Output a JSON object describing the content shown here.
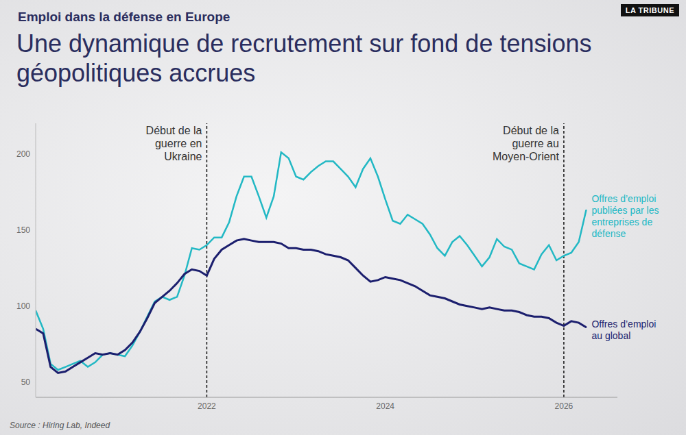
{
  "chart_data": {
    "type": "line",
    "subtitle": "Emploi dans la défense en Europe",
    "title": "Une dynamique de recrutement sur fond de tensions géopolitiques accrues",
    "source": "Source : Hiring Lab, Indeed",
    "brand": "LA TRIBUNE",
    "x": [
      2020.083,
      2020.167,
      2020.25,
      2020.333,
      2020.417,
      2020.5,
      2020.583,
      2020.667,
      2020.75,
      2020.833,
      2020.917,
      2021,
      2021.083,
      2021.167,
      2021.25,
      2021.333,
      2021.417,
      2021.5,
      2021.583,
      2021.667,
      2021.75,
      2021.833,
      2021.917,
      2022,
      2022.083,
      2022.167,
      2022.25,
      2022.333,
      2022.417,
      2022.5,
      2022.583,
      2022.667,
      2022.75,
      2022.833,
      2022.917,
      2023,
      2023.083,
      2023.167,
      2023.25,
      2023.333,
      2023.417,
      2023.5,
      2023.583,
      2023.667,
      2023.75,
      2023.833,
      2023.917,
      2024,
      2024.083,
      2024.167,
      2024.25,
      2024.333,
      2024.417,
      2024.5,
      2024.583,
      2024.667,
      2024.75,
      2024.833,
      2024.917,
      2025,
      2025.083,
      2025.167,
      2025.25,
      2025.333,
      2025.417,
      2025.5,
      2025.583,
      2025.667,
      2025.75,
      2025.833,
      2025.917,
      2026,
      2026.083,
      2026.167,
      2026.25
    ],
    "xlim": [
      2020.083,
      2026.6
    ],
    "xticks": [
      2022,
      2024,
      2026
    ],
    "ylim": [
      40,
      220
    ],
    "yticks": [
      50,
      100,
      150,
      200
    ],
    "grid": false,
    "series": [
      {
        "name": "Offres d’emploi publiées par les entreprises de défense",
        "color": "#22b8c4",
        "values": [
          97,
          85,
          62,
          58,
          60,
          62,
          64,
          60,
          63,
          68,
          69,
          68,
          67,
          74,
          83,
          93,
          103,
          106,
          104,
          106,
          120,
          138,
          137,
          140,
          145,
          145,
          155,
          172,
          185,
          185,
          172,
          158,
          172,
          201,
          197,
          185,
          183,
          188,
          192,
          195,
          195,
          190,
          185,
          178,
          190,
          197,
          185,
          170,
          156,
          154,
          160,
          157,
          154,
          147,
          138,
          133,
          142,
          146,
          140,
          133,
          126,
          132,
          144,
          139,
          137,
          128,
          126,
          124,
          134,
          140,
          130,
          133,
          135,
          142,
          163
        ]
      },
      {
        "name": "Offres d’emploi au global",
        "color": "#1c1f6e",
        "values": [
          85,
          82,
          60,
          56,
          57,
          60,
          63,
          66,
          69,
          68,
          69,
          68,
          71,
          76,
          83,
          92,
          102,
          106,
          110,
          115,
          121,
          124,
          123,
          120,
          131,
          137,
          140,
          143,
          144,
          143,
          142,
          142,
          142,
          141,
          138,
          138,
          137,
          137,
          136,
          134,
          133,
          132,
          130,
          125,
          120,
          116,
          117,
          119,
          118,
          117,
          115,
          113,
          110,
          107,
          106,
          105,
          103,
          101,
          100,
          99,
          98,
          99,
          98,
          97,
          97,
          96,
          94,
          93,
          93,
          92,
          89,
          87,
          90,
          89,
          86
        ]
      }
    ],
    "annotations": [
      {
        "text": "Début de la guerre en Ukraine",
        "x": 2022
      },
      {
        "text": "Début de la guerre au Moyen-Orient",
        "x": 2026
      }
    ]
  }
}
